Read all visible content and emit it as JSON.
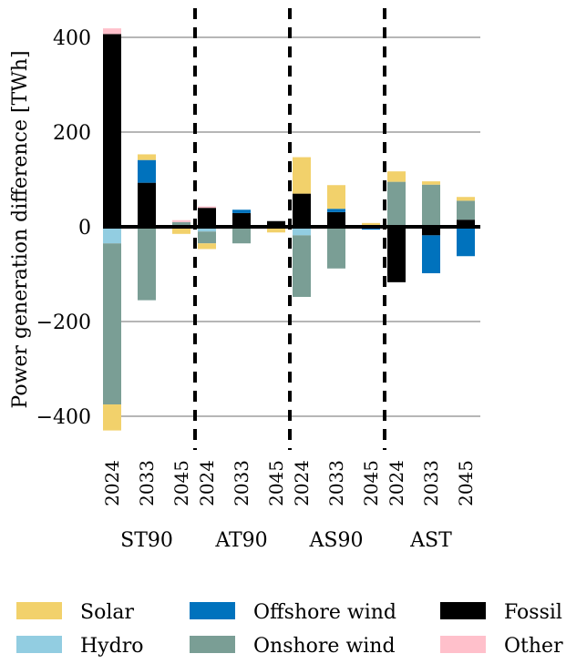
{
  "chart_data": {
    "type": "bar",
    "stacked": true,
    "ylabel": "Power generation difference [TWh]",
    "ylim": [
      -470,
      460
    ],
    "yticks": [
      400,
      200,
      0,
      -200,
      -400
    ],
    "ytick_labels": [
      "400",
      "200",
      "0",
      "−200",
      "−400"
    ],
    "grid": true,
    "groups": [
      "ST90",
      "AT90",
      "AS90",
      "AST"
    ],
    "years": [
      "2024",
      "2033",
      "2045"
    ],
    "legend_position": "bottom",
    "series": [
      {
        "name": "Solar",
        "color": "#f2d16b"
      },
      {
        "name": "Offshore wind",
        "color": "#0072bd"
      },
      {
        "name": "Fossil",
        "color": "#000000"
      },
      {
        "name": "Hydro",
        "color": "#92cde1"
      },
      {
        "name": "Onshore wind",
        "color": "#7a9e95"
      },
      {
        "name": "Other",
        "color": "#ffc0cb"
      }
    ],
    "bars": [
      {
        "group": "ST90",
        "year": "2024",
        "segments": {
          "Fossil": 407,
          "Other": 12,
          "Hydro": -35,
          "Onshore wind": -340,
          "Solar": -55
        }
      },
      {
        "group": "ST90",
        "year": "2033",
        "segments": {
          "Fossil": 93,
          "Offshore wind": 48,
          "Solar": 12,
          "Onshore wind": -155
        }
      },
      {
        "group": "ST90",
        "year": "2045",
        "segments": {
          "Onshore wind": 10,
          "Other": 4,
          "Solar": -15
        }
      },
      {
        "group": "AT90",
        "year": "2024",
        "segments": {
          "Fossil": 40,
          "Other": 3,
          "Hydro": -10,
          "Onshore wind": -25,
          "Solar": -12
        }
      },
      {
        "group": "AT90",
        "year": "2033",
        "segments": {
          "Fossil": 29,
          "Offshore wind": 7,
          "Onshore wind": -35
        }
      },
      {
        "group": "AT90",
        "year": "2045",
        "segments": {
          "Fossil": 12,
          "Solar": -12
        }
      },
      {
        "group": "AS90",
        "year": "2024",
        "segments": {
          "Fossil": 70,
          "Solar": 77,
          "Hydro": -18,
          "Onshore wind": -130
        }
      },
      {
        "group": "AS90",
        "year": "2033",
        "segments": {
          "Fossil": 31,
          "Offshore wind": 7,
          "Solar": 50,
          "Onshore wind": -88
        }
      },
      {
        "group": "AS90",
        "year": "2045",
        "segments": {
          "Solar": 8,
          "Offshore wind": -6
        }
      },
      {
        "group": "AST",
        "year": "2024",
        "segments": {
          "Onshore wind": 95,
          "Solar": 22,
          "Fossil": -117
        }
      },
      {
        "group": "AST",
        "year": "2033",
        "segments": {
          "Onshore wind": 89,
          "Solar": 7,
          "Fossil": -18,
          "Offshore wind": -80
        }
      },
      {
        "group": "AST",
        "year": "2045",
        "segments": {
          "Fossil": 15,
          "Onshore wind": 40,
          "Solar": 8,
          "Offshore wind": -62
        }
      }
    ]
  },
  "legend": {
    "items": [
      {
        "label": "Solar",
        "color": "#f2d16b"
      },
      {
        "label": "Offshore wind",
        "color": "#0072bd"
      },
      {
        "label": "Fossil",
        "color": "#000000"
      },
      {
        "label": "Hydro",
        "color": "#92cde1"
      },
      {
        "label": "Onshore wind",
        "color": "#7a9e95"
      },
      {
        "label": "Other",
        "color": "#ffc0cb"
      }
    ]
  }
}
